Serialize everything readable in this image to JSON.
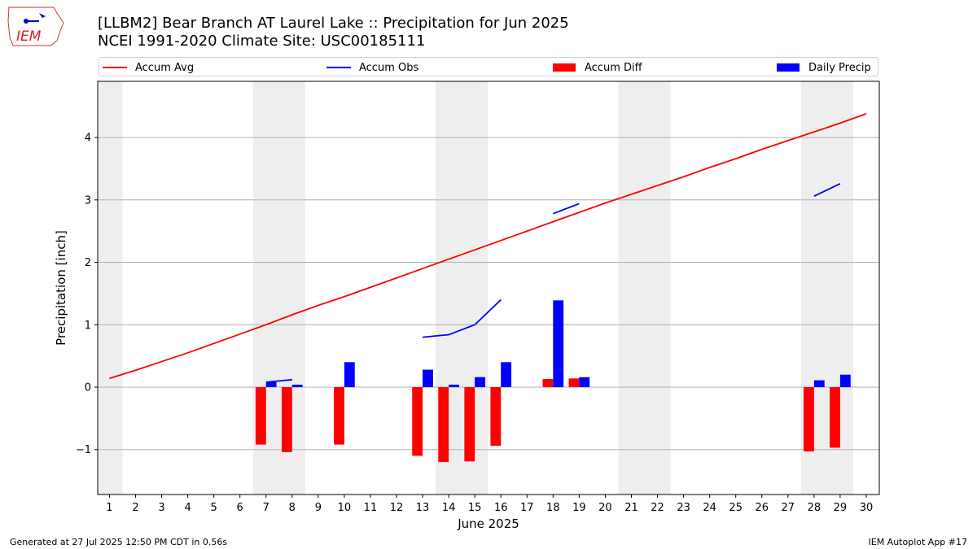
{
  "header": {
    "title_line1": "[LLBM2] Bear Branch  AT Laurel Lake :: Precipitation for Jun 2025",
    "title_line2": "NCEI 1991-2020 Climate Site: USC00185111",
    "logo_text": "IEM"
  },
  "footer": {
    "left": "Generated at 27 Jul 2025 12:50 PM CDT in 0.56s",
    "right": "IEM Autoplot App #17"
  },
  "chart_data": {
    "type": "bar",
    "xlabel": "June 2025",
    "ylabel": "Precipitation [inch]",
    "ylim": [
      -1.72,
      4.9
    ],
    "xlim": [
      0.55,
      30.5
    ],
    "x_ticks": [
      1,
      2,
      3,
      4,
      5,
      6,
      7,
      8,
      9,
      10,
      11,
      12,
      13,
      14,
      15,
      16,
      17,
      18,
      19,
      20,
      21,
      22,
      23,
      24,
      25,
      26,
      27,
      28,
      29,
      30
    ],
    "y_ticks": [
      -1,
      0,
      1,
      2,
      3,
      4
    ],
    "y_tick_labels": [
      "−1",
      "0",
      "1",
      "2",
      "3",
      "4"
    ],
    "grid": "horizontal",
    "legend_position": "top",
    "weekend_shading": [
      [
        0.5,
        1.5
      ],
      [
        6.5,
        8.5
      ],
      [
        13.5,
        15.5
      ],
      [
        20.5,
        22.5
      ],
      [
        27.5,
        29.5
      ]
    ],
    "shade_color": "#eeeeee",
    "series": [
      {
        "name": "Accum Avg",
        "kind": "line",
        "color": "#ff0000",
        "x": [
          1,
          2,
          3,
          4,
          5,
          6,
          7,
          8,
          9,
          10,
          11,
          12,
          13,
          14,
          15,
          16,
          17,
          18,
          19,
          20,
          21,
          22,
          23,
          24,
          25,
          26,
          27,
          28,
          29,
          30
        ],
        "y": [
          0.14,
          0.27,
          0.41,
          0.55,
          0.7,
          0.85,
          1.0,
          1.16,
          1.31,
          1.45,
          1.6,
          1.75,
          1.9,
          2.05,
          2.2,
          2.35,
          2.5,
          2.65,
          2.8,
          2.95,
          3.09,
          3.23,
          3.37,
          3.52,
          3.66,
          3.81,
          3.95,
          4.09,
          4.23,
          4.38
        ]
      },
      {
        "name": "Accum Obs",
        "kind": "line",
        "color": "#0000ff",
        "segments": [
          {
            "x": [
              7,
              8
            ],
            "y": [
              0.08,
              0.12
            ]
          },
          {
            "x": [
              13,
              14,
              15,
              16
            ],
            "y": [
              0.8,
              0.84,
              1.0,
              1.4
            ]
          },
          {
            "x": [
              18,
              19
            ],
            "y": [
              2.78,
              2.94
            ]
          },
          {
            "x": [
              28,
              29
            ],
            "y": [
              3.06,
              3.26
            ]
          }
        ]
      },
      {
        "name": "Accum Diff",
        "kind": "bar",
        "color": "#ff0000",
        "x": [
          7,
          8,
          10,
          13,
          14,
          15,
          16,
          18,
          19,
          28,
          29
        ],
        "y": [
          -0.92,
          -1.04,
          -0.92,
          -1.1,
          -1.2,
          -1.19,
          -0.94,
          0.13,
          0.14,
          -1.03,
          -0.97
        ]
      },
      {
        "name": "Daily Precip",
        "kind": "bar",
        "color": "#0000ff",
        "x": [
          7,
          8,
          10,
          13,
          14,
          15,
          16,
          18,
          19,
          28,
          29
        ],
        "y": [
          0.08,
          0.04,
          0.4,
          0.28,
          0.04,
          0.16,
          0.4,
          1.39,
          0.16,
          0.11,
          0.2
        ]
      }
    ]
  }
}
